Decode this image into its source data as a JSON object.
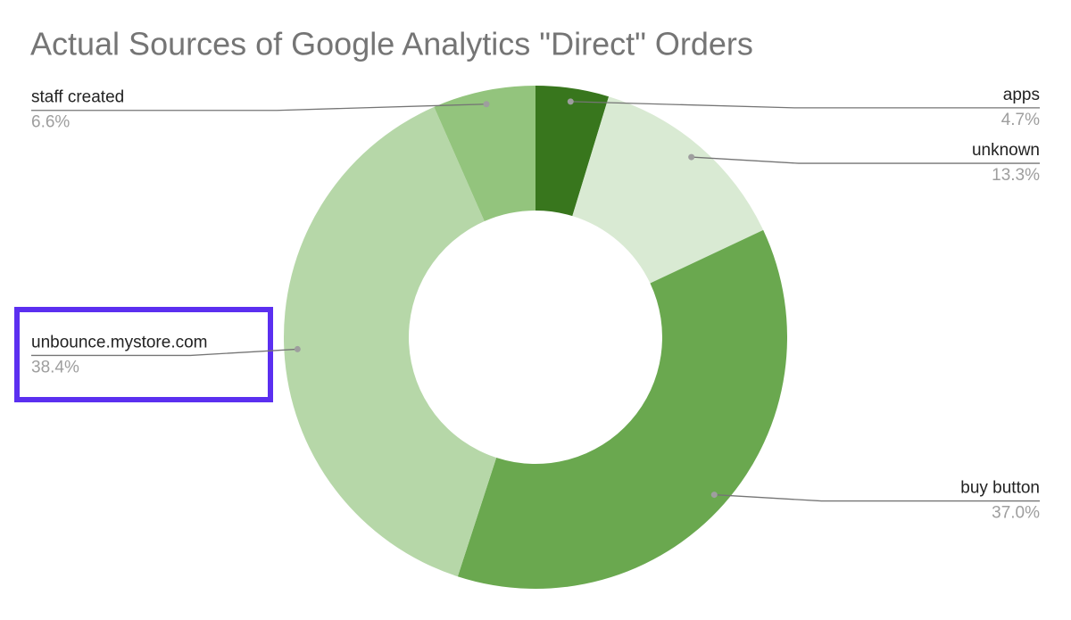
{
  "chart_data": {
    "type": "donut",
    "title": "Actual Sources of Google Analytics \"Direct\" Orders",
    "categories": [
      "apps",
      "unknown",
      "buy button",
      "unbounce.mystore.com",
      "staff created"
    ],
    "values": [
      4.7,
      13.3,
      37.0,
      38.4,
      6.6
    ],
    "value_labels": [
      "4.7%",
      "13.3%",
      "37.0%",
      "38.4%",
      "6.6%"
    ],
    "colors": [
      "#38761d",
      "#d9ead3",
      "#6aa84f",
      "#b6d7a8",
      "#93c47d"
    ]
  }
}
